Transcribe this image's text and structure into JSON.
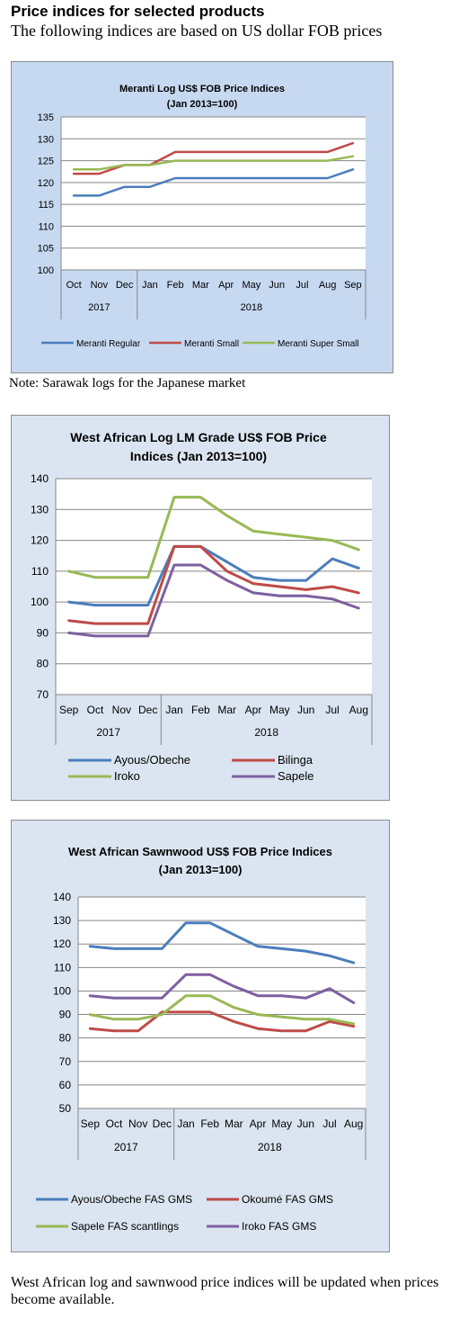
{
  "page": {
    "heading": "Price indices for selected products",
    "subheading": "The following indices are based on US dollar FOB prices",
    "note": "Note: Sarawak logs for the Japanese market",
    "footer": "West African log and sawnwood price indices will be updated when prices become available."
  },
  "colors": {
    "blue": "#4a7ebb",
    "red": "#be4b48",
    "green": "#98b954",
    "purple": "#7d60a0",
    "chart1_bg": "#c6d9f1",
    "chart2_bg": "#dbe5f1"
  },
  "chart_data": [
    {
      "type": "line",
      "title": "Meranti Log US$ FOB Price Indices",
      "subtitle": "(Jan 2013=100)",
      "categories": [
        "Oct",
        "Nov",
        "Dec",
        "Jan",
        "Feb",
        "Mar",
        "Apr",
        "May",
        "Jun",
        "Jul",
        "Aug",
        "Sep"
      ],
      "year_groups": [
        {
          "label": "2017",
          "span": 3
        },
        {
          "label": "2018",
          "span": 9
        }
      ],
      "ylim": [
        100,
        135
      ],
      "yticks": [
        100,
        105,
        110,
        115,
        120,
        125,
        130,
        135
      ],
      "grid": true,
      "legend_position": "bottom",
      "series": [
        {
          "name": "Meranti Regular",
          "color": "#4a7ebb",
          "values": [
            117,
            117,
            119,
            119,
            121,
            121,
            121,
            121,
            121,
            121,
            121,
            123
          ]
        },
        {
          "name": "Meranti Small",
          "color": "#be4b48",
          "values": [
            122,
            122,
            124,
            124,
            127,
            127,
            127,
            127,
            127,
            127,
            127,
            129
          ]
        },
        {
          "name": "Meranti Super Small",
          "color": "#98b954",
          "values": [
            123,
            123,
            124,
            124,
            125,
            125,
            125,
            125,
            125,
            125,
            125,
            126
          ]
        }
      ]
    },
    {
      "type": "line",
      "title": "West African Log LM Grade US$ FOB Price",
      "subtitle": "Indices (Jan 2013=100)",
      "categories": [
        "Sep",
        "Oct",
        "Nov",
        "Dec",
        "Jan",
        "Feb",
        "Mar",
        "Apr",
        "May",
        "Jun",
        "Jul",
        "Aug"
      ],
      "year_groups": [
        {
          "label": "2017",
          "span": 4
        },
        {
          "label": "2018",
          "span": 8
        }
      ],
      "ylim": [
        70,
        140
      ],
      "yticks": [
        70,
        80,
        90,
        100,
        110,
        120,
        130,
        140
      ],
      "grid": true,
      "legend_position": "bottom",
      "series": [
        {
          "name": "Ayous/Obeche",
          "color": "#4a7ebb",
          "values": [
            100,
            99,
            99,
            99,
            118,
            118,
            113,
            108,
            107,
            107,
            114,
            111
          ]
        },
        {
          "name": "Bilinga",
          "color": "#be4b48",
          "values": [
            94,
            93,
            93,
            93,
            118,
            118,
            110,
            106,
            105,
            104,
            105,
            103
          ]
        },
        {
          "name": "Iroko",
          "color": "#98b954",
          "values": [
            110,
            108,
            108,
            108,
            134,
            134,
            128,
            123,
            122,
            121,
            120,
            117
          ]
        },
        {
          "name": "Sapele",
          "color": "#7d60a0",
          "values": [
            90,
            89,
            89,
            89,
            112,
            112,
            107,
            103,
            102,
            102,
            101,
            98
          ]
        }
      ]
    },
    {
      "type": "line",
      "title": "West African Sawnwood US$ FOB Price Indices",
      "subtitle": "(Jan 2013=100)",
      "categories": [
        "Sep",
        "Oct",
        "Nov",
        "Dec",
        "Jan",
        "Feb",
        "Mar",
        "Apr",
        "May",
        "Jun",
        "Jul",
        "Aug"
      ],
      "year_groups": [
        {
          "label": "2017",
          "span": 4
        },
        {
          "label": "2018",
          "span": 8
        }
      ],
      "ylim": [
        50,
        140
      ],
      "yticks": [
        50,
        60,
        70,
        80,
        90,
        100,
        110,
        120,
        130,
        140
      ],
      "grid": true,
      "legend_position": "bottom",
      "series": [
        {
          "name": "Ayous/Obeche  FAS GMS",
          "color": "#4a7ebb",
          "values": [
            119,
            118,
            118,
            118,
            129,
            129,
            124,
            119,
            118,
            117,
            115,
            112
          ]
        },
        {
          "name": "Okoumé  FAS GMS",
          "color": "#be4b48",
          "values": [
            84,
            83,
            83,
            91,
            91,
            91,
            87,
            84,
            83,
            83,
            87,
            85
          ]
        },
        {
          "name": "Sapele FAS scantlings",
          "color": "#98b954",
          "values": [
            90,
            88,
            88,
            90,
            98,
            98,
            93,
            90,
            89,
            88,
            88,
            86
          ]
        },
        {
          "name": "Iroko FAS GMS",
          "color": "#7d60a0",
          "values": [
            98,
            97,
            97,
            97,
            107,
            107,
            102,
            98,
            98,
            97,
            101,
            95
          ]
        }
      ]
    }
  ]
}
